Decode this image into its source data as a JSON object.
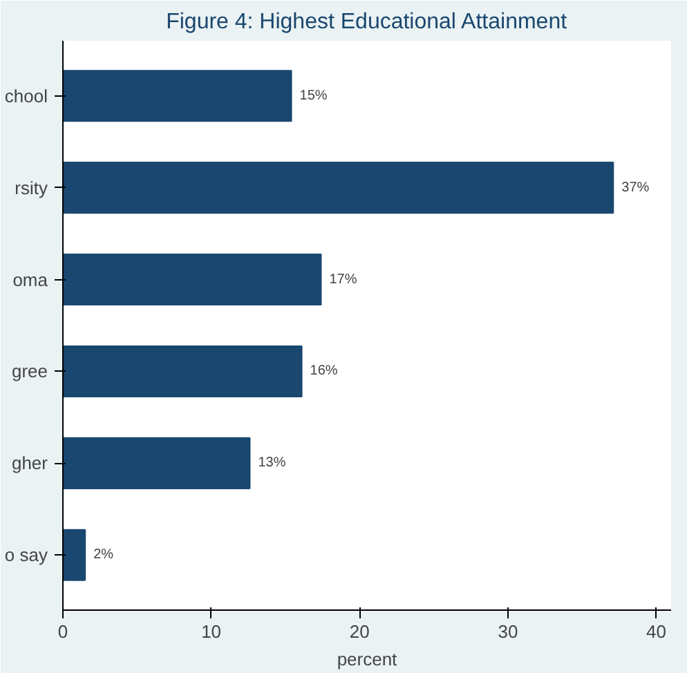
{
  "chart_data": {
    "type": "bar",
    "orientation": "horizontal",
    "title": "Figure 4: Highest Educational Attainment",
    "xlabel": "percent",
    "categories": [
      "chool",
      "rsity",
      "oma",
      "gree",
      "gher",
      "o say"
    ],
    "values": [
      15.4,
      37.1,
      17.4,
      16.1,
      12.6,
      1.5
    ],
    "value_labels": [
      "15%",
      "37%",
      "17%",
      "16%",
      "13%",
      "2%"
    ],
    "color": "#1a476f",
    "xlim": [
      0,
      41
    ],
    "xticks": [
      0,
      10,
      20,
      30,
      40
    ],
    "grid": false
  }
}
